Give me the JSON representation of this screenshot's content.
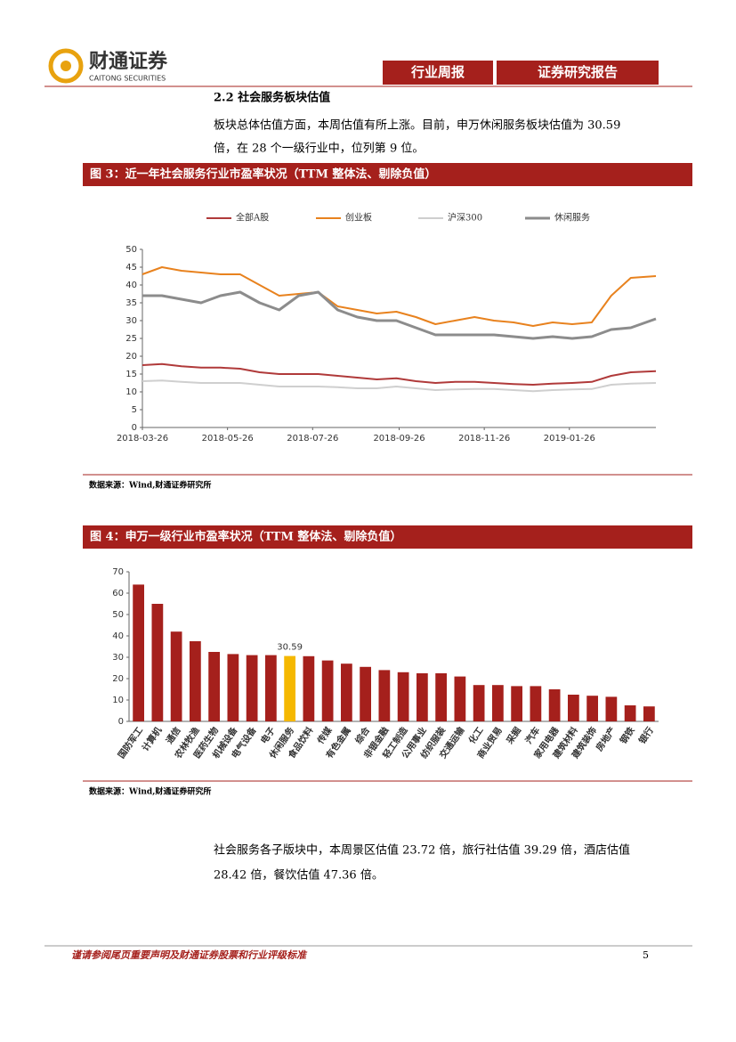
{
  "header": {
    "logo_text": "财通证券",
    "logo_subtext": "CAITONG SECURITIES",
    "tabs": [
      "行业周报",
      "证券研究报告"
    ]
  },
  "section": {
    "heading": "2.2  社会服务板块估值",
    "paragraph_1": [
      "板块总体估值方面，本周估值有所上涨。目前，申万休闲服务板块估值为 30.59",
      "倍，在 28 个一级行业中，位列第 9 位。"
    ],
    "paragraph_2": [
      "社会服务各子版块中，本周景区估值 23.72 倍，旅行社估值 39.29 倍，酒店估值",
      "28.42 倍，餐饮估值 47.36 倍。"
    ]
  },
  "chart_data": [
    {
      "type": "line",
      "title": "图 3：近一年社会服务行业市盈率状况（TTM 整体法、剔除负值）",
      "source": "数据来源：Wind,财通证券研究所",
      "x": [
        "2018-03-26",
        "2018-04-09",
        "2018-04-23",
        "2018-05-07",
        "2018-05-21",
        "2018-06-04",
        "2018-06-18",
        "2018-07-02",
        "2018-07-16",
        "2018-07-30",
        "2018-08-13",
        "2018-08-27",
        "2018-09-10",
        "2018-09-24",
        "2018-10-08",
        "2018-10-22",
        "2018-11-05",
        "2018-11-19",
        "2018-12-03",
        "2018-12-17",
        "2018-12-31",
        "2019-01-14",
        "2019-01-28",
        "2019-02-11",
        "2019-02-25",
        "2019-03-11",
        "2019-03-29"
      ],
      "xlim": [
        "2018-03-26",
        "2019-03-29"
      ],
      "xticks": [
        "2018-03-26",
        "2018-05-26",
        "2018-07-26",
        "2018-09-26",
        "2018-11-26",
        "2019-01-26"
      ],
      "ylim": [
        0,
        50
      ],
      "yticks": [
        0,
        5,
        10,
        15,
        20,
        25,
        30,
        35,
        40,
        45,
        50
      ],
      "series": [
        {
          "name": "全部A股",
          "color": "#b03a3a",
          "values": [
            17.5,
            17.8,
            17.2,
            16.8,
            16.8,
            16.5,
            15.5,
            15,
            15,
            15,
            14.5,
            14,
            13.5,
            13.8,
            13,
            12.5,
            12.8,
            12.8,
            12.5,
            12.2,
            12,
            12.3,
            12.5,
            12.8,
            14.5,
            15.5,
            15.8
          ]
        },
        {
          "name": "创业板",
          "color": "#e8821e",
          "values": [
            43,
            45,
            44,
            43.5,
            43,
            43,
            40,
            37,
            37.5,
            38,
            34,
            33,
            32,
            32.5,
            31,
            29,
            30,
            31,
            30,
            29.5,
            28.5,
            29.5,
            29,
            29.5,
            37,
            42,
            42.5
          ]
        },
        {
          "name": "沪深300",
          "color": "#cfcfcf",
          "values": [
            13,
            13.2,
            12.8,
            12.5,
            12.5,
            12.5,
            12,
            11.5,
            11.5,
            11.5,
            11.3,
            11,
            11,
            11.5,
            11,
            10.5,
            10.7,
            10.8,
            10.8,
            10.5,
            10.2,
            10.5,
            10.7,
            10.8,
            12,
            12.3,
            12.5
          ]
        },
        {
          "name": "休闲服务",
          "color": "#8c8c8c",
          "values": [
            37,
            37,
            36,
            35,
            37,
            38,
            35,
            33,
            37,
            38,
            33,
            31,
            30,
            30,
            28,
            26,
            26,
            26,
            26,
            25.5,
            25,
            25.5,
            25,
            25.5,
            27.5,
            28,
            30.5
          ]
        }
      ]
    },
    {
      "type": "bar",
      "title": "图 4：申万一级行业市盈率状况（TTM 整体法、剔除负值）",
      "source": "数据来源：Wind,财通证券研究所",
      "categories": [
        "国防军工",
        "计算机",
        "通信",
        "农林牧渔",
        "医药生物",
        "机械设备",
        "电气设备",
        "电子",
        "休闲服务",
        "食品饮料",
        "传媒",
        "有色金属",
        "综合",
        "非银金融",
        "轻工制造",
        "公用事业",
        "纺织服装",
        "交通运输",
        "化工",
        "商业贸易",
        "采掘",
        "汽车",
        "家用电器",
        "建筑材料",
        "建筑装饰",
        "房地产",
        "钢铁",
        "银行"
      ],
      "values": [
        64,
        55,
        42,
        37.5,
        32.5,
        31.5,
        31,
        31,
        30.59,
        30.5,
        28.5,
        27,
        25.5,
        24,
        23,
        22.5,
        22.5,
        21,
        17,
        17,
        16.5,
        16.5,
        15,
        12.5,
        12,
        11.5,
        7.5,
        7
      ],
      "value_labels": [
        null,
        null,
        null,
        null,
        null,
        null,
        null,
        null,
        "30.59",
        null,
        null,
        null,
        null,
        null,
        null,
        null,
        null,
        null,
        null,
        null,
        null,
        null,
        null,
        null,
        null,
        null,
        null,
        null
      ],
      "colors": [
        "#a5201c",
        "#a5201c",
        "#a5201c",
        "#a5201c",
        "#a5201c",
        "#a5201c",
        "#a5201c",
        "#a5201c",
        "#f5b800",
        "#a5201c",
        "#a5201c",
        "#a5201c",
        "#a5201c",
        "#a5201c",
        "#a5201c",
        "#a5201c",
        "#a5201c",
        "#a5201c",
        "#a5201c",
        "#a5201c",
        "#a5201c",
        "#a5201c",
        "#a5201c",
        "#a5201c",
        "#a5201c",
        "#a5201c",
        "#a5201c",
        "#a5201c"
      ],
      "ylim": [
        0,
        70
      ],
      "yticks": [
        0,
        10,
        20,
        30,
        40,
        50,
        60,
        70
      ]
    }
  ],
  "footer": {
    "disclaimer": "谨请参阅尾页重要声明及财通证券股票和行业评级标准",
    "page": "5"
  }
}
